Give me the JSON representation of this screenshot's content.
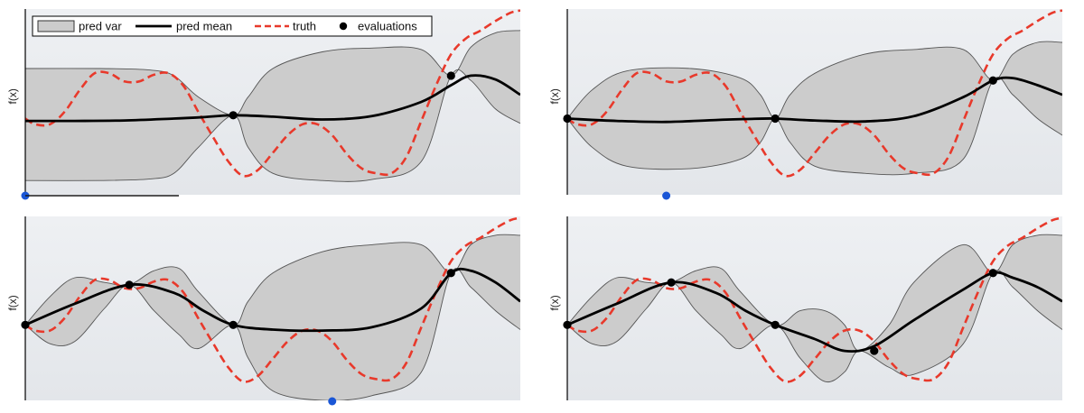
{
  "legend": {
    "entries": [
      {
        "key": "var",
        "label": "pred var"
      },
      {
        "key": "mean",
        "label": "pred mean"
      },
      {
        "key": "truth",
        "label": "truth"
      },
      {
        "key": "evals",
        "label": "evaluations"
      }
    ]
  },
  "colors": {
    "background": "#e3e6ea",
    "band_fill": "#cccccc",
    "band_edge": "#555555",
    "mean": "#000000",
    "truth": "#e8392b",
    "evaluation": "#000000",
    "next_point": "#1a56d6"
  },
  "chart_data": [
    {
      "type": "line",
      "ylabel": "f(x)",
      "xlim": [
        0,
        1
      ],
      "ylim": [
        -1.6,
        2.3
      ],
      "truth": {
        "x": [
          0.0,
          0.02,
          0.05,
          0.08,
          0.11,
          0.14,
          0.17,
          0.2,
          0.23,
          0.26,
          0.29,
          0.32,
          0.35,
          0.38,
          0.41,
          0.44,
          0.47,
          0.5,
          0.53,
          0.56,
          0.59,
          0.62,
          0.65,
          0.68,
          0.71,
          0.74,
          0.77,
          0.8,
          0.83,
          0.86,
          0.89,
          0.92,
          0.95,
          0.98,
          1.0
        ],
        "y": [
          0.0,
          -0.12,
          -0.12,
          0.15,
          0.6,
          0.95,
          0.95,
          0.78,
          0.78,
          0.92,
          0.95,
          0.68,
          0.13,
          -0.4,
          -0.9,
          -1.2,
          -1.08,
          -0.72,
          -0.35,
          -0.12,
          -0.12,
          -0.35,
          -0.75,
          -1.05,
          -1.15,
          -1.15,
          -0.8,
          -0.05,
          0.7,
          1.35,
          1.68,
          1.85,
          2.05,
          2.22,
          2.27
        ]
      },
      "mean": {
        "x": [
          0.0,
          0.1,
          0.2,
          0.3,
          0.36,
          0.42,
          0.5,
          0.6,
          0.7,
          0.8,
          0.86,
          0.9,
          0.95,
          1.0
        ],
        "y": [
          -0.05,
          -0.05,
          -0.04,
          0.0,
          0.03,
          0.07,
          0.04,
          -0.02,
          0.05,
          0.35,
          0.7,
          0.9,
          0.82,
          0.5
        ]
      },
      "band_upper": {
        "x": [
          0.0,
          0.15,
          0.25,
          0.3,
          0.35,
          0.42,
          0.45,
          0.5,
          0.6,
          0.7,
          0.8,
          0.86,
          0.9,
          0.95,
          1.0
        ],
        "y": [
          1.05,
          1.05,
          1.02,
          0.9,
          0.45,
          0.07,
          0.45,
          1.05,
          1.4,
          1.48,
          1.45,
          0.9,
          1.5,
          1.8,
          1.85
        ]
      },
      "band_lower": {
        "x": [
          0.0,
          0.15,
          0.25,
          0.3,
          0.35,
          0.42,
          0.45,
          0.5,
          0.6,
          0.7,
          0.8,
          0.86,
          0.9,
          0.95,
          1.0
        ],
        "y": [
          -1.3,
          -1.3,
          -1.27,
          -1.15,
          -0.6,
          0.07,
          -0.6,
          -1.15,
          -1.3,
          -1.28,
          -0.9,
          0.9,
          0.8,
          0.2,
          -0.1
        ]
      },
      "evaluations": {
        "x": [
          0.42,
          0.86
        ],
        "y": [
          0.07,
          0.9
        ]
      },
      "next_point_x": 0.0
    },
    {
      "type": "line",
      "ylabel": "f(x)",
      "xlim": [
        0,
        1
      ],
      "ylim": [
        -1.6,
        2.3
      ],
      "truth": {
        "x": [
          0.0,
          0.02,
          0.05,
          0.08,
          0.11,
          0.14,
          0.17,
          0.2,
          0.23,
          0.26,
          0.29,
          0.32,
          0.35,
          0.38,
          0.41,
          0.44,
          0.47,
          0.5,
          0.53,
          0.56,
          0.59,
          0.62,
          0.65,
          0.68,
          0.71,
          0.74,
          0.77,
          0.8,
          0.83,
          0.86,
          0.89,
          0.92,
          0.95,
          0.98,
          1.0
        ],
        "y": [
          0.0,
          -0.12,
          -0.12,
          0.15,
          0.6,
          0.95,
          0.95,
          0.78,
          0.78,
          0.92,
          0.95,
          0.68,
          0.13,
          -0.4,
          -0.9,
          -1.2,
          -1.08,
          -0.72,
          -0.35,
          -0.12,
          -0.12,
          -0.35,
          -0.75,
          -1.05,
          -1.15,
          -1.15,
          -0.8,
          -0.05,
          0.7,
          1.35,
          1.68,
          1.85,
          2.05,
          2.22,
          2.27
        ]
      },
      "mean": {
        "x": [
          0.0,
          0.1,
          0.2,
          0.3,
          0.36,
          0.42,
          0.5,
          0.6,
          0.7,
          0.8,
          0.86,
          0.9,
          0.95,
          1.0
        ],
        "y": [
          0.0,
          -0.05,
          -0.07,
          -0.03,
          -0.01,
          0.0,
          -0.04,
          -0.06,
          0.05,
          0.45,
          0.8,
          0.85,
          0.7,
          0.5
        ]
      },
      "band_upper": {
        "x": [
          0.0,
          0.05,
          0.12,
          0.25,
          0.35,
          0.39,
          0.42,
          0.45,
          0.5,
          0.6,
          0.7,
          0.8,
          0.86,
          0.9,
          0.95,
          1.0
        ],
        "y": [
          0.0,
          0.6,
          1.0,
          1.05,
          0.85,
          0.5,
          0.0,
          0.5,
          0.95,
          1.35,
          1.45,
          1.45,
          0.8,
          1.35,
          1.6,
          1.6
        ]
      },
      "band_lower": {
        "x": [
          0.0,
          0.05,
          0.12,
          0.25,
          0.35,
          0.39,
          0.42,
          0.45,
          0.5,
          0.6,
          0.7,
          0.8,
          0.86,
          0.9,
          0.95,
          1.0
        ],
        "y": [
          0.0,
          -0.6,
          -1.0,
          -1.05,
          -0.85,
          -0.5,
          0.0,
          -0.5,
          -1.0,
          -1.15,
          -1.15,
          -0.85,
          0.8,
          0.5,
          0.0,
          -0.35
        ]
      },
      "evaluations": {
        "x": [
          0.0,
          0.42,
          0.86
        ],
        "y": [
          0.0,
          0.0,
          0.8
        ]
      },
      "next_point_x": 0.2
    },
    {
      "type": "line",
      "ylabel": "f(x)",
      "xlim": [
        0,
        1
      ],
      "ylim": [
        -1.6,
        2.3
      ],
      "truth": {
        "x": [
          0.0,
          0.02,
          0.05,
          0.08,
          0.11,
          0.14,
          0.17,
          0.2,
          0.23,
          0.26,
          0.29,
          0.32,
          0.35,
          0.38,
          0.41,
          0.44,
          0.47,
          0.5,
          0.53,
          0.56,
          0.59,
          0.62,
          0.65,
          0.68,
          0.71,
          0.74,
          0.77,
          0.8,
          0.83,
          0.86,
          0.89,
          0.92,
          0.95,
          0.98,
          1.0
        ],
        "y": [
          0.0,
          -0.12,
          -0.12,
          0.15,
          0.6,
          0.95,
          0.95,
          0.78,
          0.78,
          0.92,
          0.95,
          0.68,
          0.13,
          -0.4,
          -0.9,
          -1.2,
          -1.08,
          -0.72,
          -0.35,
          -0.12,
          -0.12,
          -0.35,
          -0.75,
          -1.05,
          -1.15,
          -1.15,
          -0.8,
          -0.05,
          0.7,
          1.35,
          1.68,
          1.85,
          2.05,
          2.22,
          2.27
        ]
      },
      "mean": {
        "x": [
          0.0,
          0.1,
          0.21,
          0.3,
          0.36,
          0.42,
          0.5,
          0.6,
          0.7,
          0.8,
          0.86,
          0.9,
          0.95,
          1.0
        ],
        "y": [
          0.0,
          0.45,
          0.85,
          0.68,
          0.3,
          0.0,
          -0.1,
          -0.12,
          -0.05,
          0.35,
          1.1,
          1.15,
          0.9,
          0.5
        ]
      },
      "band_upper": {
        "x": [
          0.0,
          0.05,
          0.1,
          0.16,
          0.21,
          0.26,
          0.31,
          0.35,
          0.42,
          0.45,
          0.5,
          0.6,
          0.7,
          0.8,
          0.86,
          0.9,
          0.95,
          1.0
        ],
        "y": [
          0.0,
          0.6,
          1.0,
          0.9,
          0.85,
          1.15,
          1.2,
          0.7,
          0.0,
          0.5,
          1.1,
          1.55,
          1.7,
          1.7,
          1.1,
          1.7,
          1.9,
          1.9
        ]
      },
      "band_lower": {
        "x": [
          0.0,
          0.05,
          0.1,
          0.16,
          0.21,
          0.26,
          0.31,
          0.35,
          0.42,
          0.45,
          0.5,
          0.6,
          0.7,
          0.8,
          0.86,
          0.9,
          0.95,
          1.0
        ],
        "y": [
          0.0,
          -0.4,
          -0.35,
          0.35,
          0.85,
          0.3,
          -0.2,
          -0.5,
          0.0,
          -0.7,
          -1.4,
          -1.6,
          -1.5,
          -1.0,
          1.1,
          0.8,
          0.3,
          -0.1
        ]
      },
      "evaluations": {
        "x": [
          0.0,
          0.21,
          0.42,
          0.86
        ],
        "y": [
          0.0,
          0.85,
          0.0,
          1.1
        ]
      },
      "next_point_x": 0.62
    },
    {
      "type": "line",
      "ylabel": "f(x)",
      "xlim": [
        0,
        1
      ],
      "ylim": [
        -1.6,
        2.3
      ],
      "truth": {
        "x": [
          0.0,
          0.02,
          0.05,
          0.08,
          0.11,
          0.14,
          0.17,
          0.2,
          0.23,
          0.26,
          0.29,
          0.32,
          0.35,
          0.38,
          0.41,
          0.44,
          0.47,
          0.5,
          0.53,
          0.56,
          0.59,
          0.62,
          0.65,
          0.68,
          0.71,
          0.74,
          0.77,
          0.8,
          0.83,
          0.86,
          0.89,
          0.92,
          0.95,
          0.98,
          1.0
        ],
        "y": [
          0.0,
          -0.12,
          -0.12,
          0.15,
          0.6,
          0.95,
          0.95,
          0.78,
          0.78,
          0.92,
          0.95,
          0.68,
          0.13,
          -0.4,
          -0.9,
          -1.2,
          -1.08,
          -0.72,
          -0.35,
          -0.12,
          -0.12,
          -0.35,
          -0.75,
          -1.05,
          -1.15,
          -1.15,
          -0.8,
          -0.05,
          0.7,
          1.35,
          1.68,
          1.85,
          2.05,
          2.22,
          2.27
        ]
      },
      "mean": {
        "x": [
          0.0,
          0.1,
          0.21,
          0.3,
          0.36,
          0.42,
          0.5,
          0.56,
          0.62,
          0.7,
          0.8,
          0.86,
          0.9,
          0.95,
          1.0
        ],
        "y": [
          0.0,
          0.45,
          0.9,
          0.68,
          0.3,
          0.0,
          -0.3,
          -0.55,
          -0.45,
          0.1,
          0.75,
          1.1,
          1.0,
          0.8,
          0.5
        ]
      },
      "band_upper": {
        "x": [
          0.0,
          0.05,
          0.1,
          0.16,
          0.21,
          0.26,
          0.31,
          0.35,
          0.42,
          0.47,
          0.52,
          0.56,
          0.59,
          0.65,
          0.7,
          0.8,
          0.86,
          0.9,
          0.95,
          1.0
        ],
        "y": [
          0.0,
          0.6,
          1.0,
          0.9,
          0.9,
          1.15,
          1.2,
          0.7,
          0.0,
          0.3,
          0.3,
          0.0,
          -0.55,
          0.0,
          0.9,
          1.7,
          1.1,
          1.7,
          1.9,
          1.9
        ]
      },
      "band_lower": {
        "x": [
          0.0,
          0.05,
          0.1,
          0.16,
          0.21,
          0.26,
          0.31,
          0.35,
          0.42,
          0.47,
          0.52,
          0.56,
          0.59,
          0.65,
          0.7,
          0.8,
          0.86,
          0.9,
          0.95,
          1.0
        ],
        "y": [
          0.0,
          -0.4,
          -0.35,
          0.35,
          0.9,
          0.3,
          -0.2,
          -0.5,
          0.0,
          -0.7,
          -1.2,
          -1.0,
          -0.55,
          -0.9,
          -1.05,
          -0.4,
          1.1,
          0.8,
          0.3,
          -0.1
        ]
      },
      "evaluations": {
        "x": [
          0.0,
          0.21,
          0.42,
          0.62,
          0.86
        ],
        "y": [
          0.0,
          0.9,
          0.0,
          -0.55,
          1.1
        ]
      },
      "next_point_x": null
    }
  ]
}
